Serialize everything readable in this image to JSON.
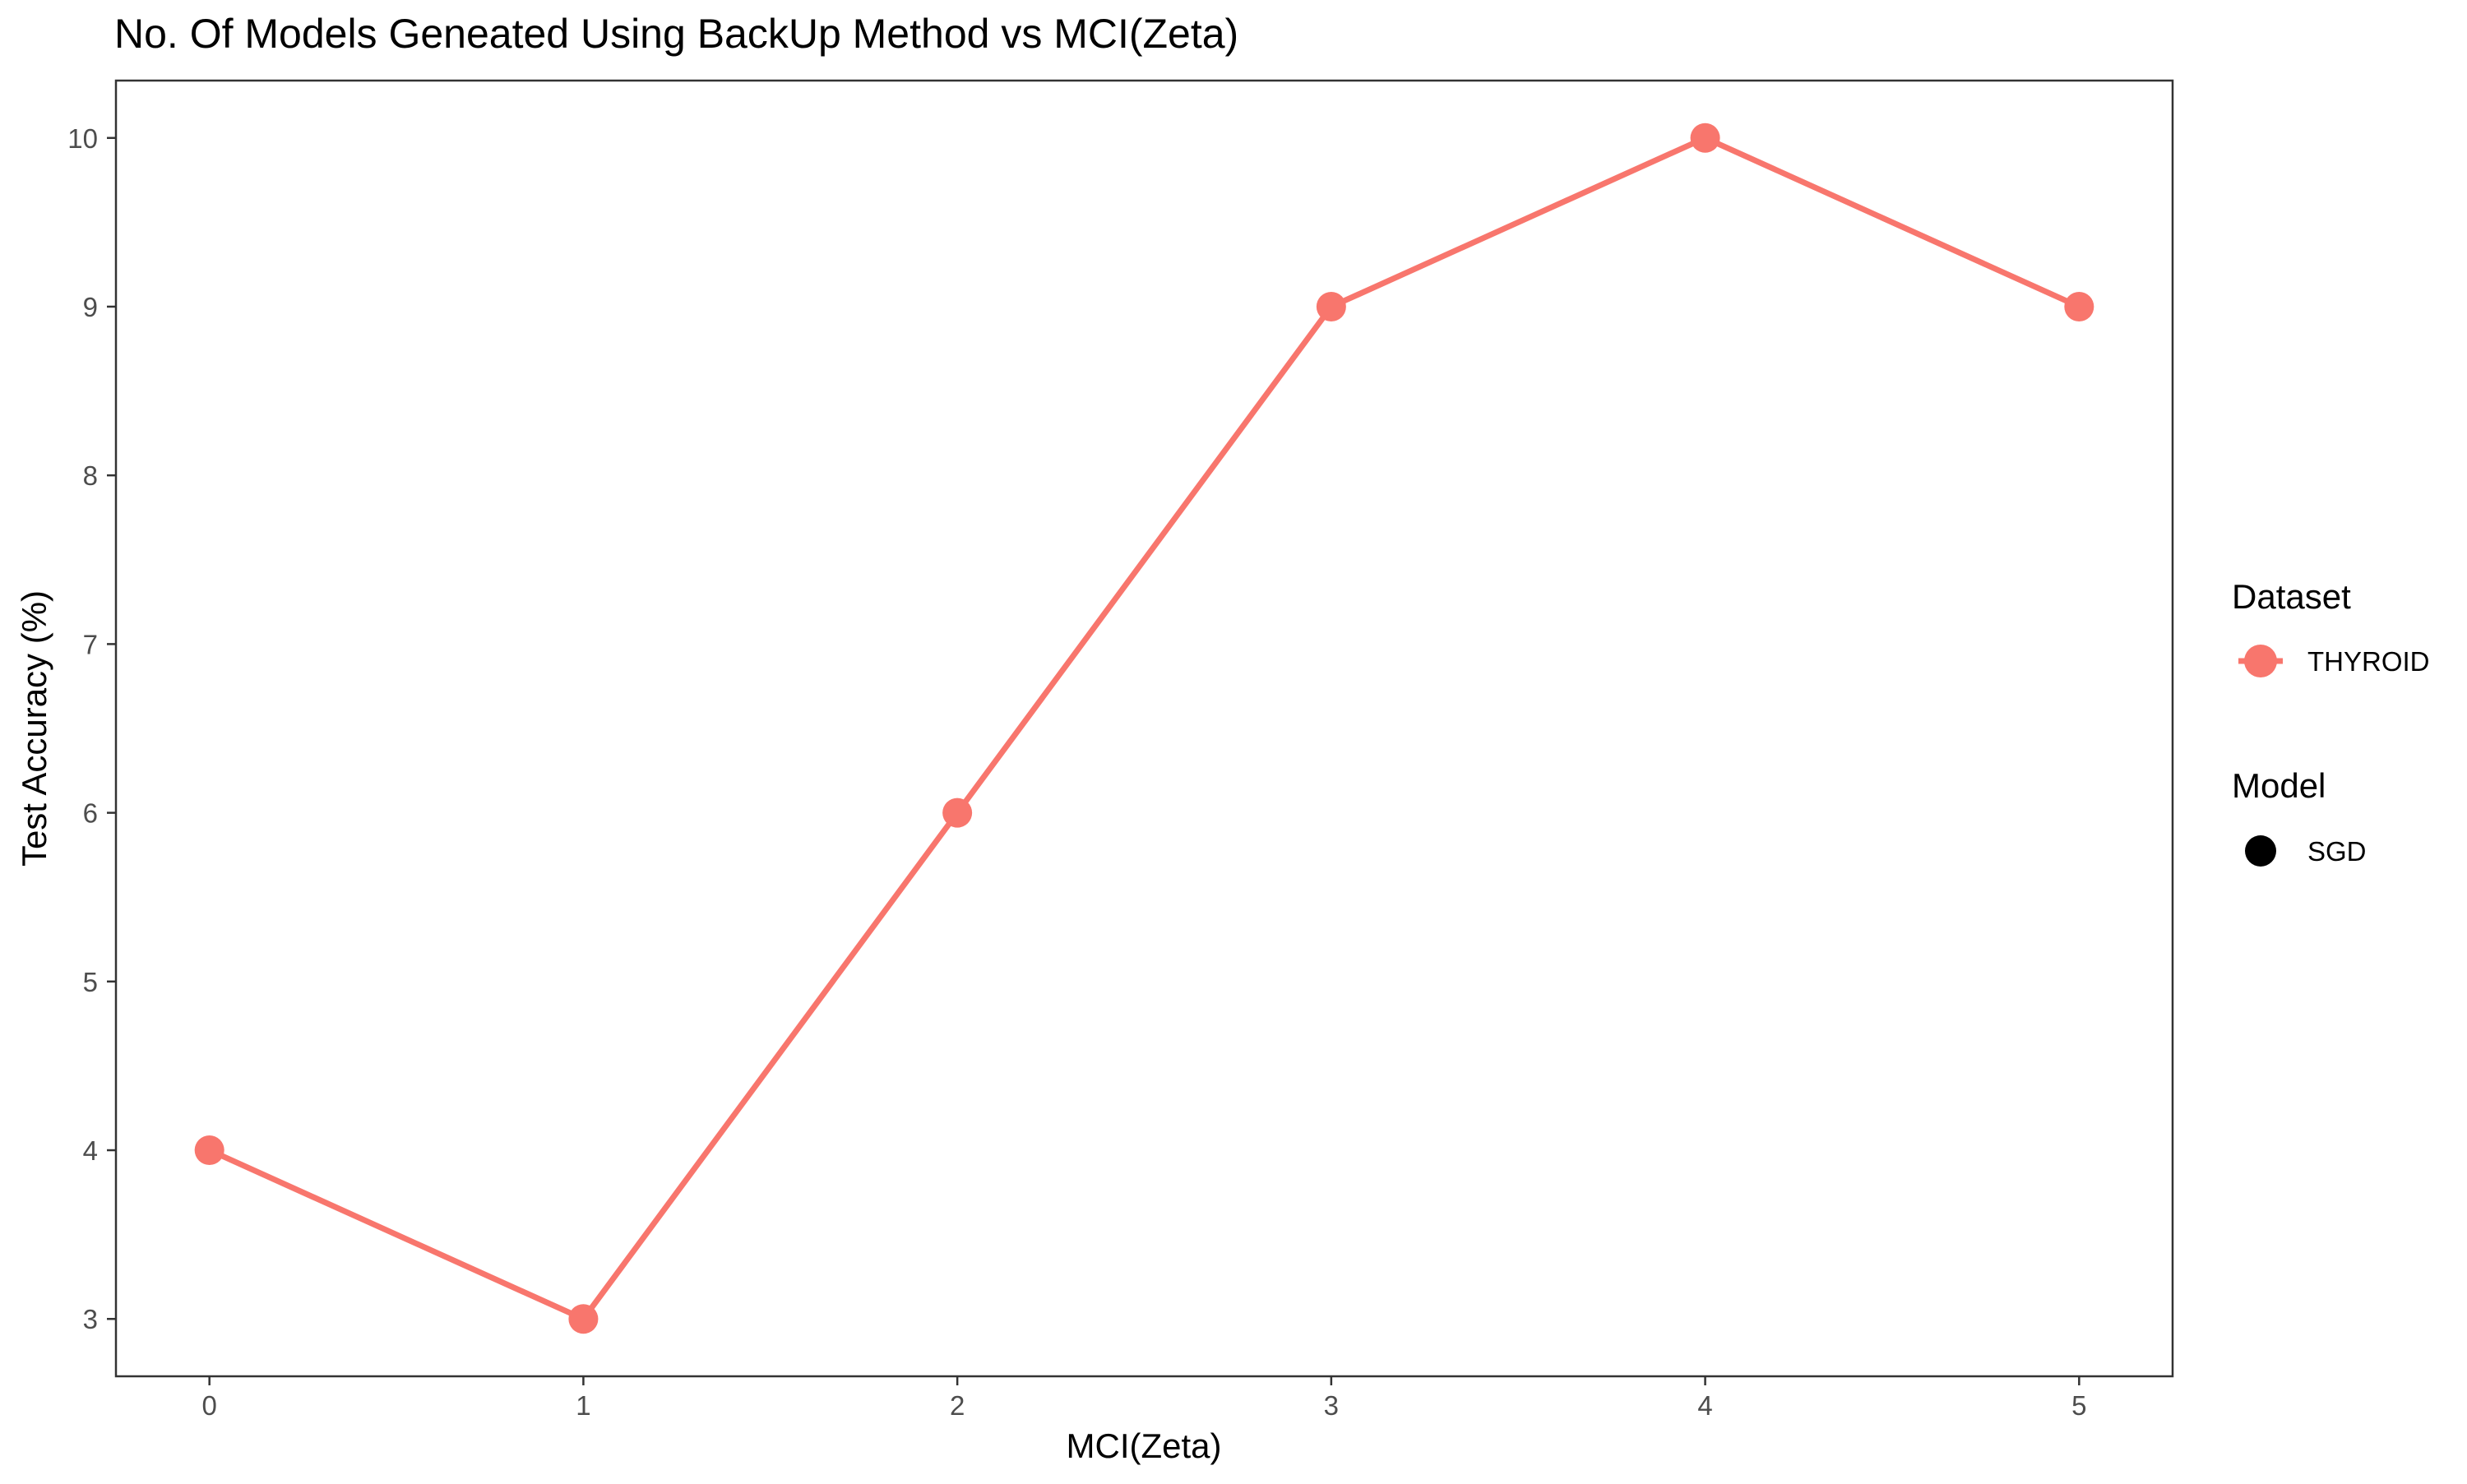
{
  "chart_data": {
    "type": "line",
    "title": "No. Of Models Geneated Using BackUp Method vs MCI(Zeta)",
    "xlabel": "MCI(Zeta)",
    "ylabel": "Test Accuracy (%)",
    "x": [
      0,
      1,
      2,
      3,
      4,
      5
    ],
    "series": [
      {
        "name": "THYROID",
        "values": [
          4,
          3,
          6,
          9,
          10,
          9
        ]
      }
    ],
    "xlim": [
      -0.25,
      5.25
    ],
    "ylim": [
      2.66,
      10.34
    ],
    "xticks": [
      "0",
      "1",
      "2",
      "3",
      "4",
      "5"
    ],
    "yticks": [
      "3",
      "4",
      "5",
      "6",
      "7",
      "8",
      "9",
      "10"
    ],
    "grid": false,
    "legend_placement": "right",
    "legends": [
      {
        "title": "Dataset",
        "entries": [
          {
            "label": "THYROID",
            "color": "#F8766D",
            "shape": "line-point"
          }
        ]
      },
      {
        "title": "Model",
        "entries": [
          {
            "label": "SGD",
            "color": "#000000",
            "shape": "point"
          }
        ]
      }
    ],
    "series_color": "#F8766D"
  }
}
